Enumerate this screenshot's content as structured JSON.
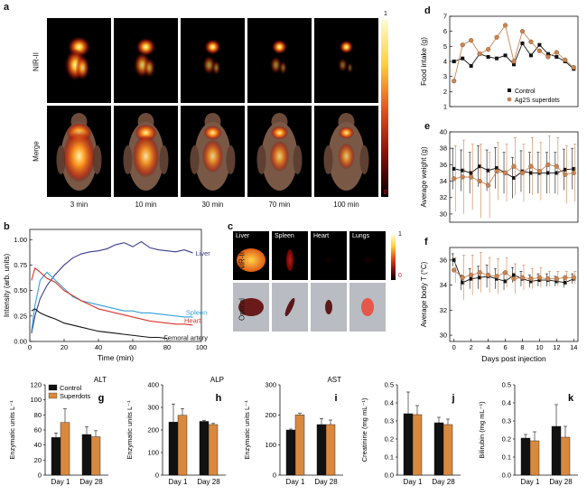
{
  "panel_a": {
    "label": "a",
    "row_labels": [
      "NIR-II",
      "Merge"
    ],
    "times": [
      "3 min",
      "10 min",
      "30 min",
      "70 min",
      "100 min"
    ],
    "colorbar": {
      "max": "1",
      "min": "0"
    }
  },
  "panel_b": {
    "label": "b",
    "chart_data": {
      "type": "line",
      "xlabel": "Time (min)",
      "ylabel": "Intensity (arb. units)",
      "xlim": [
        0,
        100
      ],
      "ylim": [
        0,
        1.1
      ],
      "xticks": [
        0,
        20,
        40,
        60,
        80,
        100
      ],
      "yticks": [
        0.0,
        0.25,
        0.5,
        0.75,
        1.0
      ],
      "ytick_labels": [
        "0.00",
        "0.25",
        "0.50",
        "0.75",
        "1.00"
      ],
      "series": [
        {
          "name": "Liver",
          "color": "#3b3b8f",
          "x": [
            1,
            3,
            6,
            10,
            15,
            20,
            25,
            30,
            35,
            40,
            45,
            50,
            55,
            60,
            65,
            70,
            75,
            80,
            85,
            90,
            95
          ],
          "y": [
            0.08,
            0.25,
            0.42,
            0.55,
            0.66,
            0.75,
            0.82,
            0.86,
            0.88,
            0.89,
            0.91,
            0.95,
            0.97,
            0.93,
            0.98,
            0.92,
            0.9,
            0.89,
            0.88,
            0.9,
            0.87
          ]
        },
        {
          "name": "Spleen",
          "color": "#35a0d6",
          "x": [
            1,
            3,
            6,
            10,
            15,
            20,
            25,
            30,
            35,
            40,
            45,
            50,
            55,
            60,
            65,
            70,
            75,
            80,
            85,
            90,
            95
          ],
          "y": [
            0.1,
            0.35,
            0.6,
            0.68,
            0.6,
            0.52,
            0.44,
            0.4,
            0.38,
            0.36,
            0.34,
            0.32,
            0.3,
            0.3,
            0.28,
            0.28,
            0.27,
            0.26,
            0.25,
            0.24,
            0.24
          ]
        },
        {
          "name": "Heart",
          "color": "#d8332c",
          "x": [
            1,
            3,
            6,
            10,
            15,
            20,
            25,
            30,
            35,
            40,
            45,
            50,
            55,
            60,
            65,
            70,
            75,
            80,
            85,
            90,
            95
          ],
          "y": [
            0.6,
            0.72,
            0.68,
            0.62,
            0.58,
            0.5,
            0.45,
            0.4,
            0.36,
            0.32,
            0.3,
            0.28,
            0.26,
            0.24,
            0.22,
            0.2,
            0.19,
            0.18,
            0.17,
            0.17,
            0.16
          ]
        },
        {
          "name": "Femoral artery",
          "color": "#111111",
          "x": [
            1,
            3,
            6,
            10,
            15,
            20,
            25,
            30,
            35,
            40,
            45,
            50,
            55,
            60,
            65,
            70,
            75,
            80
          ],
          "y": [
            0.3,
            0.32,
            0.28,
            0.25,
            0.22,
            0.18,
            0.16,
            0.14,
            0.12,
            0.1,
            0.09,
            0.08,
            0.07,
            0.06,
            0.05,
            0.04,
            0.04,
            0.03
          ]
        }
      ]
    }
  },
  "panel_c": {
    "label": "c",
    "organs": [
      "Liver",
      "Spleen",
      "Heart",
      "Lungs"
    ],
    "row_labels": [
      "NIR-II",
      "Optical"
    ],
    "colorbar": {
      "max": "1",
      "min": "0"
    }
  },
  "panel_d": {
    "label": "d",
    "chart_data": {
      "type": "line",
      "ylabel": "Food intake (g)",
      "xlim": [
        -0.5,
        14.5
      ],
      "ylim": [
        1,
        7
      ],
      "yticks": [
        1,
        2,
        3,
        4,
        5,
        6,
        7
      ],
      "legend": "bottom-right",
      "series": [
        {
          "name": "Control",
          "color": "#111111",
          "x": [
            0,
            1,
            2,
            3,
            4,
            5,
            6,
            7,
            8,
            9,
            10,
            11,
            12,
            13,
            14
          ],
          "y": [
            4.0,
            4.2,
            3.7,
            4.5,
            4.3,
            4.2,
            4.4,
            3.8,
            5.2,
            4.4,
            5.1,
            4.5,
            4.3,
            4.0,
            3.5
          ]
        },
        {
          "name": "Ag2S superdots",
          "color": "#c98552",
          "x": [
            0,
            1,
            2,
            3,
            4,
            5,
            6,
            7,
            8,
            9,
            10,
            11,
            12,
            13,
            14
          ],
          "y": [
            2.7,
            5.1,
            5.4,
            4.5,
            4.8,
            5.6,
            6.4,
            4.0,
            6.0,
            5.3,
            4.7,
            4.3,
            4.6,
            4.1,
            3.6
          ]
        }
      ]
    }
  },
  "panel_e": {
    "label": "e",
    "chart_data": {
      "type": "line",
      "ylabel": "Average weight (g)",
      "xlim": [
        -0.5,
        14.5
      ],
      "ylim": [
        29,
        40
      ],
      "yticks": [
        30,
        32,
        34,
        36,
        38,
        40
      ],
      "series": [
        {
          "name": "Control",
          "color": "#111111",
          "x": [
            0,
            1,
            2,
            3,
            4,
            5,
            6,
            7,
            8,
            9,
            10,
            11,
            12,
            13,
            14
          ],
          "y": [
            35.5,
            35.3,
            35.0,
            35.8,
            35.3,
            35.6,
            35.0,
            34.4,
            35.2,
            35.0,
            35.0,
            35.0,
            35.0,
            35.4,
            35.5
          ],
          "err": [
            2.5,
            2.5,
            2.5,
            2.5,
            2.5,
            2.5,
            2.5,
            2.5,
            2.5,
            2.5,
            2.5,
            2.5,
            2.5,
            2.5,
            2.5
          ]
        },
        {
          "name": "Ag2S superdots",
          "color": "#c98552",
          "x": [
            0,
            1,
            2,
            3,
            4,
            5,
            6,
            7,
            8,
            9,
            10,
            11,
            12,
            13,
            14
          ],
          "y": [
            34.3,
            34.5,
            34.5,
            34.0,
            33.5,
            35.2,
            35.0,
            35.8,
            35.0,
            35.8,
            35.2,
            36.0,
            35.8,
            34.8,
            35.0
          ],
          "err": [
            4.0,
            4.5,
            4.0,
            4.5,
            4.0,
            3.5,
            3.5,
            3.5,
            3.5,
            3.5,
            3.5,
            3.5,
            3.5,
            3.5,
            3.5
          ]
        }
      ]
    }
  },
  "panel_f": {
    "label": "f",
    "chart_data": {
      "type": "line",
      "xlabel": "Days post injection",
      "ylabel": "Average body T (°C)",
      "xlim": [
        -0.5,
        14.5
      ],
      "ylim": [
        29.5,
        37
      ],
      "xticks": [
        0,
        2,
        4,
        6,
        8,
        10,
        12,
        14
      ],
      "yticks": [
        30,
        32,
        34,
        36
      ],
      "series": [
        {
          "name": "Control",
          "color": "#111111",
          "x": [
            0,
            1,
            2,
            3,
            4,
            5,
            6,
            7,
            8,
            9,
            10,
            11,
            12,
            13,
            14
          ],
          "y": [
            36.0,
            34.2,
            34.5,
            34.6,
            34.7,
            34.5,
            34.3,
            34.8,
            34.5,
            34.3,
            34.4,
            34.4,
            34.3,
            34.2,
            34.5
          ],
          "err": [
            0.5,
            0.6,
            0.8,
            0.9,
            0.9,
            0.8,
            0.7,
            0.6,
            0.6,
            0.5,
            0.5,
            0.5,
            0.4,
            0.4,
            0.4
          ]
        },
        {
          "name": "Ag2S superdots",
          "color": "#c98552",
          "x": [
            0,
            1,
            2,
            3,
            4,
            5,
            6,
            7,
            8,
            9,
            10,
            11,
            12,
            13,
            14
          ],
          "y": [
            35.2,
            34.6,
            34.8,
            35.0,
            34.8,
            34.7,
            35.0,
            34.5,
            34.6,
            34.5,
            34.6,
            34.5,
            34.5,
            34.6,
            34.6
          ],
          "err": [
            1.0,
            1.8,
            1.6,
            1.6,
            1.4,
            1.4,
            1.2,
            1.2,
            1.0,
            0.8,
            0.8,
            0.6,
            0.6,
            0.5,
            0.5
          ]
        }
      ]
    }
  },
  "bars": {
    "legend": [
      "Control",
      "Superdots"
    ],
    "colors": [
      "#111111",
      "#d9893e"
    ],
    "panels": [
      {
        "label": "g",
        "title": "ALT",
        "ylabel": "Enzymatic units L⁻¹",
        "ylim": [
          0,
          120
        ],
        "yticks": [
          0,
          20,
          40,
          60,
          80,
          100,
          120
        ],
        "categories": [
          "Day 1",
          "Day 28"
        ],
        "control": [
          50,
          54
        ],
        "superdots": [
          70,
          51
        ],
        "control_err": [
          6,
          10
        ],
        "superdots_err": [
          18,
          8
        ]
      },
      {
        "label": "h",
        "title": "ALP",
        "ylabel": "Enzymatic units L⁻¹",
        "ylim": [
          0,
          400
        ],
        "yticks": [
          0,
          100,
          200,
          300,
          400
        ],
        "categories": [
          "Day 1",
          "Day 28"
        ],
        "control": [
          235,
          238
        ],
        "superdots": [
          265,
          224
        ],
        "control_err": [
          80,
          5
        ],
        "superdots_err": [
          30,
          5
        ]
      },
      {
        "label": "i",
        "title": "AST",
        "ylabel": "Enzymatic units L⁻¹",
        "ylim": [
          0,
          300
        ],
        "yticks": [
          0,
          100,
          200,
          300
        ],
        "categories": [
          "Day 1",
          "Day 28"
        ],
        "control": [
          150,
          168
        ],
        "superdots": [
          200,
          168
        ],
        "control_err": [
          3,
          20
        ],
        "superdots_err": [
          5,
          15
        ]
      },
      {
        "label": "j",
        "title": "",
        "ylabel": "Creatinine (mg mL⁻¹)",
        "ylim": [
          0,
          0.5
        ],
        "yticks": [
          0,
          0.1,
          0.2,
          0.3,
          0.4,
          0.5
        ],
        "ytick_labels": [
          "0.0",
          "0.1",
          "0.2",
          "0.3",
          "0.4",
          "0.5"
        ],
        "categories": [
          "Day 1",
          "Day 28"
        ],
        "control": [
          0.34,
          0.29
        ],
        "superdots": [
          0.335,
          0.28
        ],
        "control_err": [
          0.12,
          0.03
        ],
        "superdots_err": [
          0.05,
          0.03
        ]
      },
      {
        "label": "k",
        "title": "",
        "ylabel": "Bilirubin (mg mL⁻¹)",
        "ylim": [
          0,
          0.5
        ],
        "yticks": [
          0,
          0.1,
          0.2,
          0.3,
          0.4,
          0.5
        ],
        "ytick_labels": [
          "0.0",
          "0.1",
          "0.2",
          "0.3",
          "0.4",
          "0.5"
        ],
        "categories": [
          "Day 1",
          "Day 28"
        ],
        "control": [
          0.205,
          0.27
        ],
        "superdots": [
          0.19,
          0.21
        ],
        "control_err": [
          0.02,
          0.12
        ],
        "superdots_err": [
          0.05,
          0.06
        ]
      }
    ]
  }
}
